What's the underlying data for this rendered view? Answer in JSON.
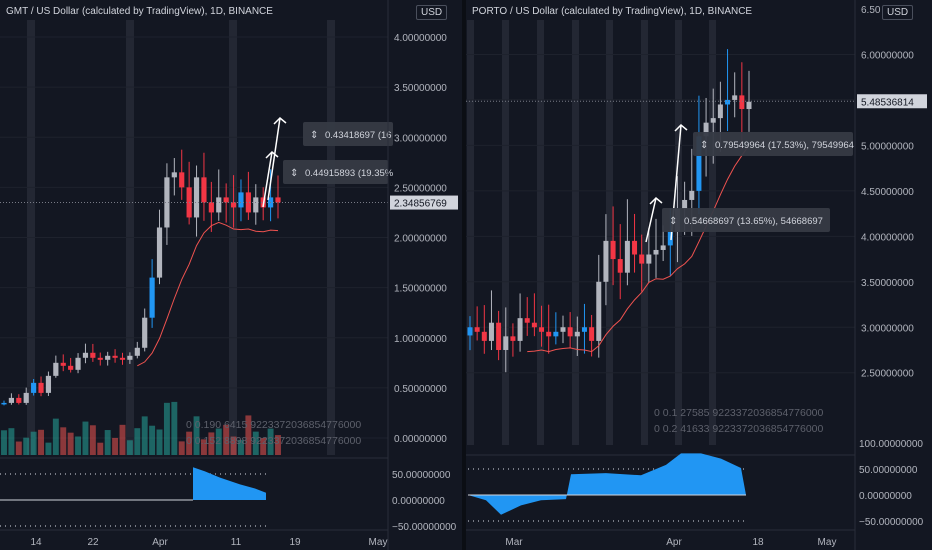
{
  "left": {
    "title": "GMT / US Dollar (calculated by TradingView), 1D, BINANCE",
    "currency": "USD",
    "price_label": "2.34856769",
    "y_ticks": [
      "4.00000000",
      "3.50000000",
      "3.00000000",
      "2.50000000",
      "2.00000000",
      "1.50000000",
      "1.00000000",
      "0.50000000",
      "0.00000000"
    ],
    "x_ticks": [
      "14",
      "22",
      "Apr",
      "11",
      "19",
      "May"
    ],
    "osc_ticks": [
      "50.00000000",
      "0.00000000",
      "−50.00000000"
    ],
    "measure1": "0.43418697 (16",
    "measure2": "0.44915893 (19.35%",
    "info1": "0  0.190 6415  9223372036854776000",
    "info2": "0  0.152 8898  9223372036854776000"
  },
  "right": {
    "title": "PORTO / US Dollar (calculated by TradingView), 1D, BINANCE",
    "currency": "USD",
    "top_tick": "6.50",
    "price_label": "5.48536814",
    "y_ticks": [
      "6.00000000",
      "5.50000000",
      "5.00000000",
      "4.50000000",
      "4.00000000",
      "3.50000000",
      "3.00000000",
      "2.50000000"
    ],
    "x_ticks": [
      "Mar",
      "Apr",
      "18",
      "May"
    ],
    "osc_ticks": [
      "100.00000000",
      "50.00000000",
      "0.00000000",
      "−50.00000000"
    ],
    "measure1": "0.79549964 (17.53%), 79549964",
    "measure2": "0.54668697 (13.65%), 54668697",
    "info1": "0  0.1 27585 9223372036854776000",
    "info2": "0  0.2 41633 9223372036854776000"
  },
  "colors": {
    "background": "#131722",
    "up": "#b2b5be",
    "down": "#f23645",
    "alt_up": "#2196f3",
    "ma": "#ef5350",
    "osc_fill": "#2196f3",
    "vol_up": "#26a69a",
    "vol_down": "#ef5350",
    "label_bg": "#d1d4dc"
  },
  "chart_data": [
    {
      "type": "candlestick",
      "title": "GMT / US Dollar (calculated by TradingView), 1D, BINANCE",
      "ylim": [
        0,
        4
      ],
      "closes": [
        0.35,
        0.4,
        0.35,
        0.45,
        0.55,
        0.45,
        0.62,
        0.75,
        0.72,
        0.68,
        0.8,
        0.85,
        0.8,
        0.78,
        0.82,
        0.8,
        0.78,
        0.82,
        0.9,
        1.2,
        1.6,
        2.1,
        2.6,
        2.65,
        2.5,
        2.2,
        2.6,
        2.35,
        2.25,
        2.4,
        2.35,
        2.3,
        2.45,
        2.25,
        2.4,
        2.3,
        2.4,
        2.35
      ]
    },
    {
      "type": "candlestick",
      "title": "PORTO / US Dollar (calculated by TradingView), 1D, BINANCE",
      "ylim": [
        2.2,
        6.5
      ],
      "closes": [
        3.0,
        2.95,
        2.85,
        3.05,
        2.75,
        2.9,
        2.85,
        3.1,
        3.05,
        3.0,
        2.95,
        2.9,
        2.95,
        3.0,
        2.9,
        2.95,
        3.0,
        2.85,
        3.5,
        3.95,
        3.75,
        3.6,
        3.95,
        3.8,
        3.7,
        3.8,
        3.85,
        3.9,
        4.05,
        4.3,
        4.4,
        4.5,
        5.1,
        5.25,
        5.3,
        5.45,
        5.5,
        5.55,
        5.4,
        5.48
      ]
    }
  ]
}
